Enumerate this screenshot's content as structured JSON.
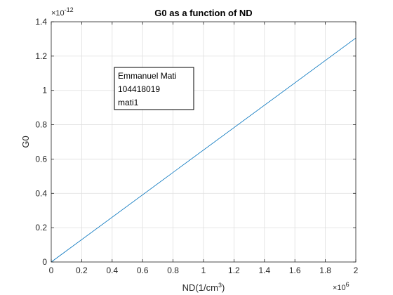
{
  "chart_data": {
    "type": "line",
    "title": "G0 as a function of ND",
    "xlabel": "ND(1/cm",
    "xlabel_sup": "3",
    "xlabel_close": ")",
    "ylabel": "G0",
    "x_multiplier": {
      "base": "×10",
      "exponent": "6"
    },
    "y_multiplier": {
      "base": "×10",
      "exponent": "-12"
    },
    "xlim": [
      0,
      2
    ],
    "ylim": [
      0,
      1.4
    ],
    "x_ticks": [
      0,
      0.2,
      0.4,
      0.6,
      0.8,
      1,
      1.2,
      1.4,
      1.6,
      1.8,
      2
    ],
    "x_tick_labels": [
      "0",
      "0.2",
      "0.4",
      "0.6",
      "0.8",
      "1",
      "1.2",
      "1.4",
      "1.6",
      "1.8",
      "2"
    ],
    "y_ticks": [
      0,
      0.2,
      0.4,
      0.6,
      0.8,
      1,
      1.2,
      1.4
    ],
    "y_tick_labels": [
      "0",
      "0.2",
      "0.4",
      "0.6",
      "0.8",
      "1",
      "1.2",
      "1.4"
    ],
    "grid": true,
    "series": [
      {
        "color": "#0072BD",
        "x": [
          0,
          2
        ],
        "y": [
          0,
          1.305
        ]
      }
    ],
    "annotation": {
      "lines": [
        "Emmanuel Mati",
        "104418019",
        "mati1"
      ]
    }
  }
}
